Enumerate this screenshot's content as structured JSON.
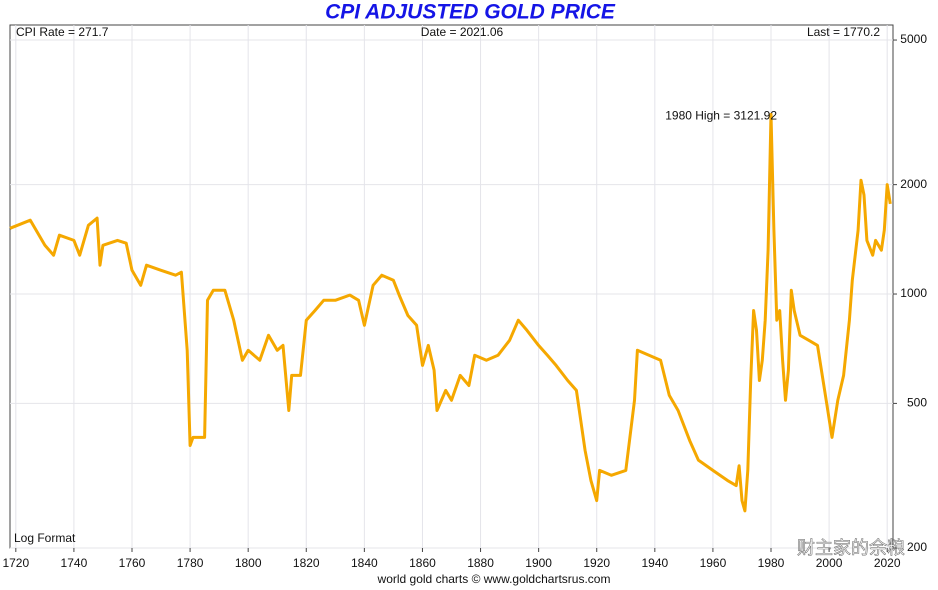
{
  "chart_data": {
    "type": "line",
    "title": "CPI ADJUSTED GOLD PRICE",
    "info_left": "CPI Rate = 271.7",
    "info_center": "Date = 2021.06",
    "info_right": "Last = 1770.2",
    "annotation": "1980 High = 3121.92",
    "scale_note": "Log Format",
    "source": "world gold charts © www.goldchartsrus.com",
    "watermark": "财主家的余粮",
    "log_scale": true,
    "grid": true,
    "xlim": [
      1718,
      2022
    ],
    "xticks": [
      1720,
      1740,
      1760,
      1780,
      1800,
      1820,
      1840,
      1860,
      1880,
      1900,
      1920,
      1940,
      1960,
      1980,
      2000,
      2020
    ],
    "ylim": [
      200,
      5500
    ],
    "yticks": [
      200,
      500,
      1000,
      2000,
      5000
    ],
    "series": [
      {
        "name": "CPI adjusted gold price",
        "color": "#f5a800",
        "x": [
          1718,
          1725,
          1730,
          1733,
          1735,
          1740,
          1742,
          1745,
          1748,
          1749,
          1750,
          1755,
          1758,
          1760,
          1763,
          1765,
          1770,
          1775,
          1777,
          1779,
          1780,
          1781,
          1785,
          1786,
          1788,
          1792,
          1795,
          1798,
          1800,
          1804,
          1807,
          1810,
          1812,
          1814,
          1815,
          1818,
          1820,
          1823,
          1826,
          1830,
          1835,
          1838,
          1840,
          1843,
          1846,
          1850,
          1852,
          1855,
          1858,
          1860,
          1862,
          1864,
          1865,
          1868,
          1870,
          1873,
          1876,
          1878,
          1882,
          1886,
          1890,
          1893,
          1896,
          1900,
          1903,
          1906,
          1910,
          1913,
          1916,
          1918,
          1920,
          1921,
          1925,
          1930,
          1933,
          1934,
          1938,
          1942,
          1945,
          1948,
          1952,
          1955,
          1960,
          1965,
          1968,
          1969,
          1970,
          1971,
          1972,
          1973,
          1974,
          1975,
          1976,
          1977,
          1978,
          1979,
          1980,
          1981,
          1982,
          1983,
          1984,
          1985,
          1986,
          1987,
          1988,
          1990,
          1993,
          1996,
          1999,
          2001,
          2003,
          2005,
          2007,
          2008,
          2010,
          2011,
          2012,
          2013,
          2015,
          2016,
          2018,
          2019,
          2020,
          2021.06
        ],
        "values": [
          1517,
          1596,
          1362,
          1279,
          1452,
          1405,
          1279,
          1546,
          1618,
          1200,
          1362,
          1405,
          1380,
          1162,
          1057,
          1200,
          1162,
          1127,
          1148,
          700,
          383,
          403,
          403,
          961,
          1024,
          1024,
          847,
          657,
          700,
          657,
          770,
          700,
          722,
          478,
          597,
          597,
          847,
          901,
          961,
          961,
          993,
          961,
          820,
          1057,
          1127,
          1091,
          993,
          873,
          820,
          636,
          722,
          617,
          478,
          543,
          510,
          597,
          560,
          678,
          657,
          678,
          746,
          847,
          794,
          722,
          678,
          636,
          578,
          543,
          371,
          307,
          270,
          327,
          317,
          327,
          510,
          700,
          678,
          657,
          526,
          478,
          395,
          349,
          327,
          307,
          297,
          337,
          270,
          253,
          327,
          578,
          901,
          794,
          578,
          657,
          847,
          1320,
          3121.92,
          1498,
          847,
          901,
          657,
          510,
          617,
          1024,
          901,
          770,
          746,
          722,
          510,
          403,
          510,
          597,
          847,
          1091,
          1498,
          2057,
          1872,
          1405,
          1279,
          1405,
          1320,
          1498,
          2000,
          1770.2
        ]
      }
    ]
  }
}
